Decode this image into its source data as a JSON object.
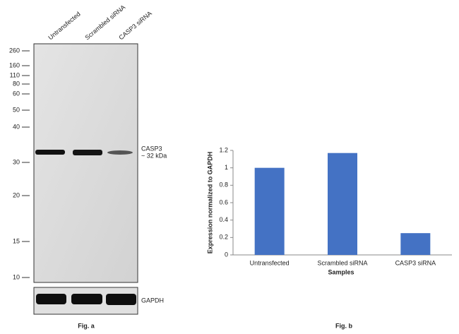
{
  "blot": {
    "lanes": [
      "Untransfected",
      "Scrambled siRNA",
      "CASP3 siRNA"
    ],
    "markers": [
      260,
      160,
      110,
      80,
      60,
      50,
      40,
      30,
      20,
      15,
      10
    ],
    "band_label": [
      "CASP3",
      "~ 32 kDa"
    ],
    "loading_label": "GAPDH",
    "caption": "Fig. a"
  },
  "chart_data": {
    "type": "bar",
    "categories": [
      "Untransfected",
      "Scrambled siRNA",
      "CASP3 siRNA"
    ],
    "values": [
      1.0,
      1.17,
      0.25
    ],
    "color": "#4472c4",
    "ylim": [
      0,
      1.2
    ],
    "yticks": [
      0,
      0.2,
      0.4,
      0.6,
      0.8,
      1,
      1.2
    ],
    "ylabel": "Expression normalized to GAPDH",
    "xlabel": "Samples",
    "caption": "Fig. b"
  }
}
